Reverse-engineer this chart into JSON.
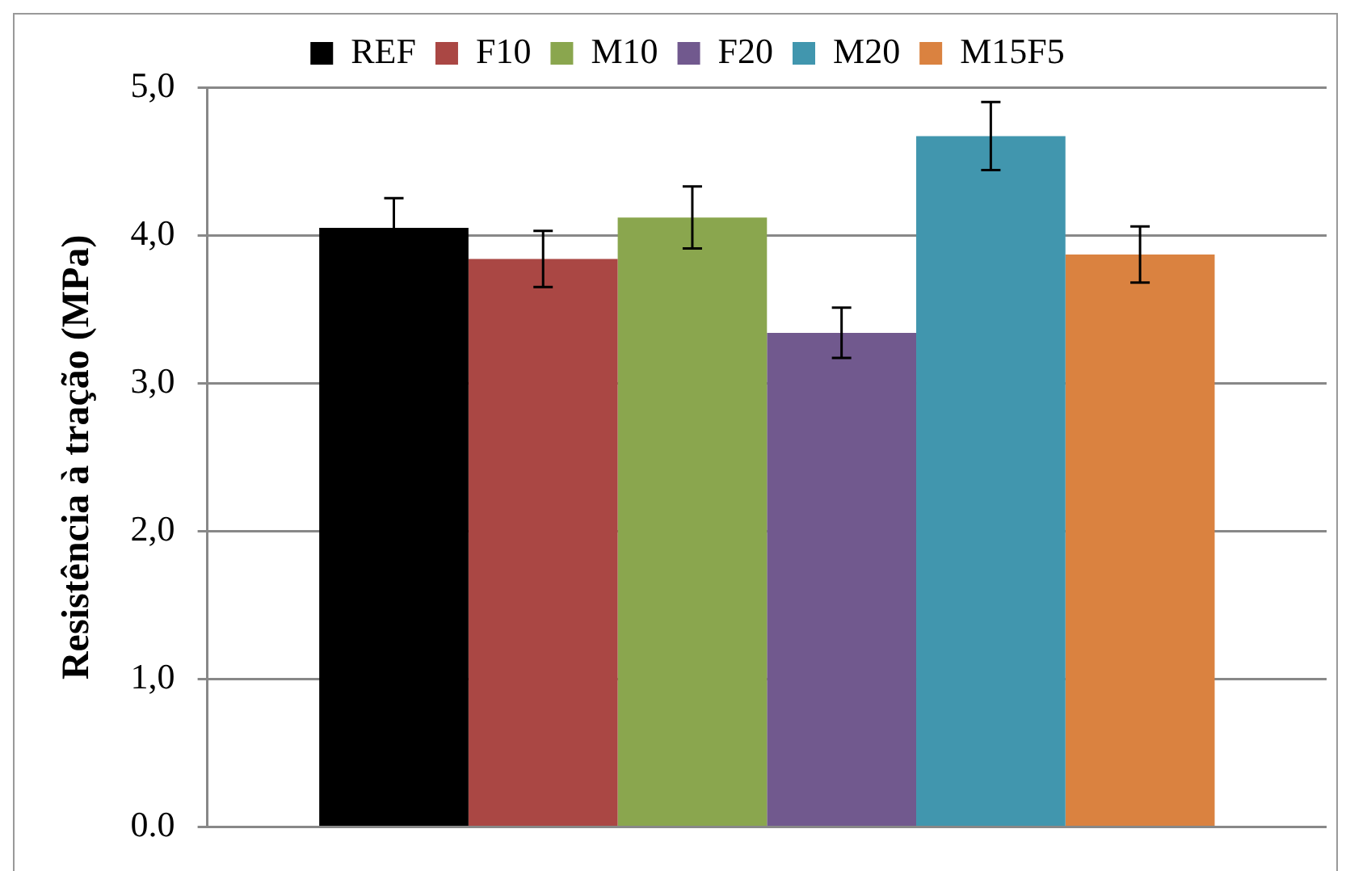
{
  "chart_data": {
    "type": "bar",
    "ylabel": "Resistência à tração (MPa)",
    "categories": [
      null
    ],
    "series": [
      {
        "name": "REF",
        "color": "#000000",
        "values": [
          4.05
        ],
        "errors": [
          0.2
        ]
      },
      {
        "name": "F10",
        "color": "#aa4744",
        "values": [
          3.84
        ],
        "errors": [
          0.19
        ]
      },
      {
        "name": "M10",
        "color": "#8aa64e",
        "values": [
          4.12
        ],
        "errors": [
          0.21
        ]
      },
      {
        "name": "F20",
        "color": "#71598e",
        "values": [
          3.34
        ],
        "errors": [
          0.17
        ]
      },
      {
        "name": "M20",
        "color": "#4196ae",
        "values": [
          4.67
        ],
        "errors": [
          0.23
        ]
      },
      {
        "name": "M15F5",
        "color": "#da8240",
        "values": [
          3.87
        ],
        "errors": [
          0.19
        ]
      }
    ],
    "ylim": [
      0,
      5
    ],
    "yticks": [
      {
        "value": 0,
        "label": "0.0"
      },
      {
        "value": 1,
        "label": "1,0"
      },
      {
        "value": 2,
        "label": "2,0"
      },
      {
        "value": 3,
        "label": "3,0"
      },
      {
        "value": 4,
        "label": "4,0"
      },
      {
        "value": 5,
        "label": "5,0"
      }
    ],
    "grid": "y",
    "legend": "top"
  }
}
